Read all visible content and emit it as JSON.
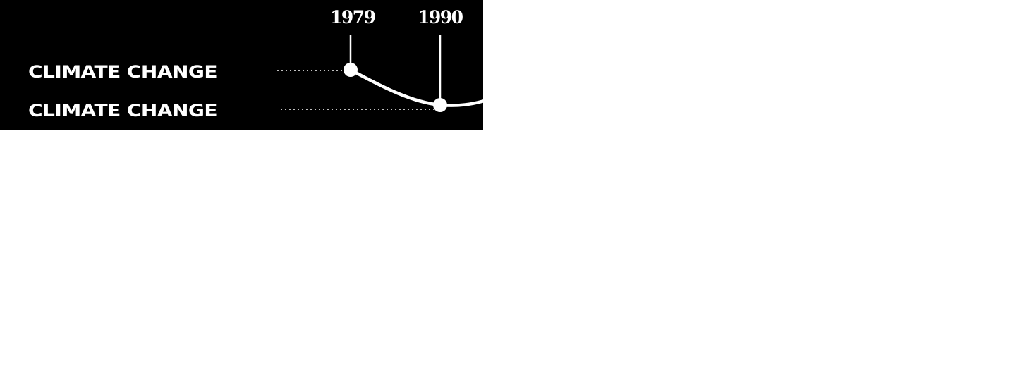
{
  "timeline": {
    "rows": [
      {
        "label": "CLIMATE CHANGE",
        "year": "1979"
      },
      {
        "label": "CLIMATE CHANGE",
        "year": "1990"
      }
    ]
  },
  "colors": {
    "background": "#000000",
    "foreground": "#ffffff",
    "page": "#ffffff"
  }
}
